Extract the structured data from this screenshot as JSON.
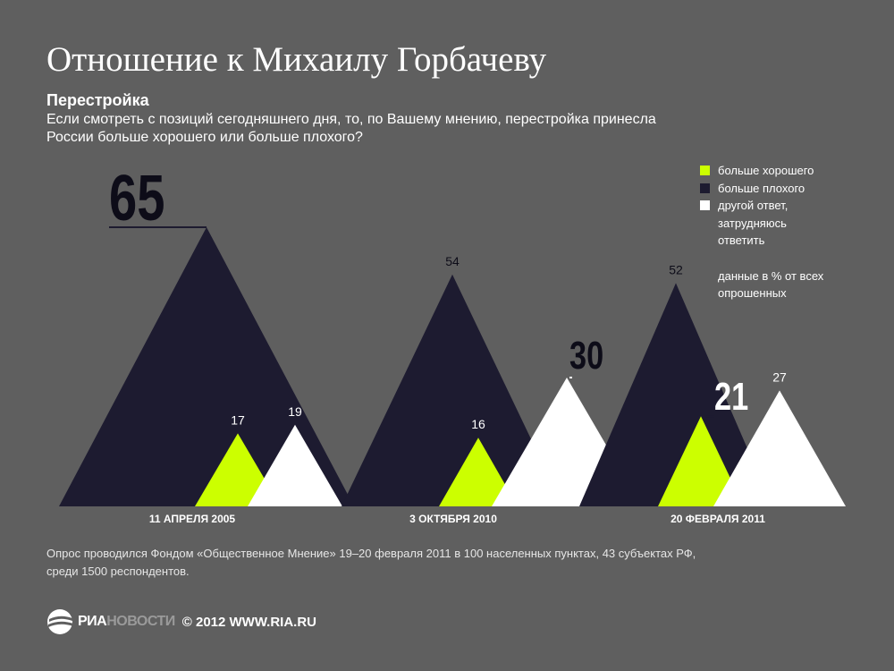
{
  "header": {
    "title": "Отношение к Михаилу Горбачеву",
    "subtitle": "Перестройка",
    "question": "Если смотреть с позиций сегодняшнего дня, то, по Вашему мнению, перестройка принесла России больше хорошего или больше плохого?"
  },
  "legend": {
    "items": [
      {
        "label": "больше хорошего",
        "color": "#ccff00"
      },
      {
        "label": "больше плохого",
        "color": "#1d1b30"
      },
      {
        "label": "другой ответ, затрудняюсь ответить",
        "color": "#ffffff"
      }
    ],
    "note": "данные в % от всех опрошенных"
  },
  "chart_data": {
    "type": "area",
    "categories": [
      "11 АПРЕЛЯ 2005",
      "3 ОКТЯБРЯ 2010",
      "20 ФЕВРАЛЯ 2011"
    ],
    "series": [
      {
        "name": "больше хорошего",
        "values": [
          17,
          16,
          21
        ],
        "color": "#ccff00"
      },
      {
        "name": "больше плохого",
        "values": [
          65,
          54,
          52
        ],
        "color": "#1d1b30"
      },
      {
        "name": "другой ответ, затрудняюсь ответить",
        "values": [
          19,
          30,
          27
        ],
        "color": "#ffffff"
      }
    ],
    "highlighted": [
      {
        "series": 1,
        "category": 0
      },
      {
        "series": 2,
        "category": 1
      },
      {
        "series": 0,
        "category": 2
      }
    ],
    "ylim": [
      0,
      65
    ],
    "grid": false,
    "legend_position": "right"
  },
  "source": "Опрос проводился Фондом «Общественное Мнение» 19–20 февраля 2011 в 100 населенных пунктах, 43 субъектах РФ,  среди 1500 респондентов.",
  "footer": {
    "logo_ria": "РИА",
    "logo_novosti": "НОВОСТИ",
    "copyright": "© 2012 WWW.RIA.RU"
  }
}
